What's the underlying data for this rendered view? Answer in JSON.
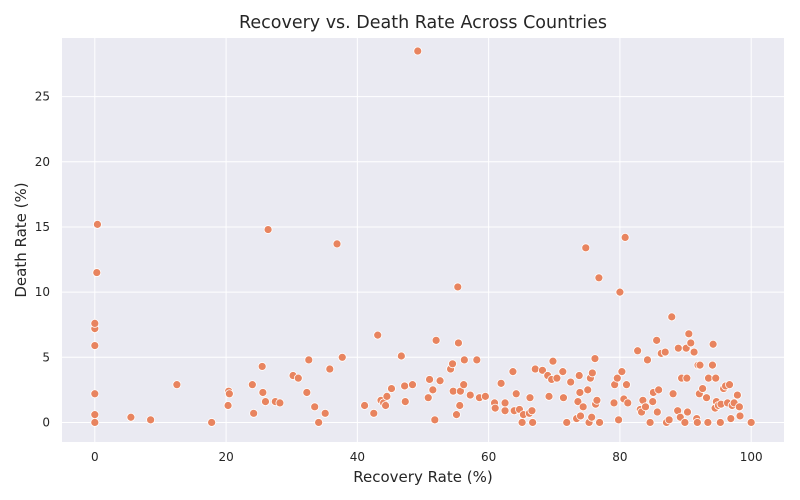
{
  "chart_data": {
    "type": "scatter",
    "title": "Recovery vs. Death Rate Across Countries",
    "xlabel": "Recovery Rate (%)",
    "ylabel": "Death Rate (%)",
    "xlim": [
      -5,
      105
    ],
    "ylim": [
      -1.5,
      29.5
    ],
    "xticks": [
      0,
      20,
      40,
      60,
      80,
      100
    ],
    "yticks": [
      0,
      5,
      10,
      15,
      20,
      25
    ],
    "grid": true,
    "legend": "none",
    "colors": {
      "marker": "#e8845f",
      "marker_edge": "#ffffff",
      "plot_bg": "#eaeaf2",
      "grid": "#ffffff"
    },
    "series": [
      {
        "points": [
          [
            0,
            0
          ],
          [
            0,
            0.6
          ],
          [
            0,
            2.2
          ],
          [
            0,
            5.9
          ],
          [
            0,
            7.2
          ],
          [
            0,
            7.6
          ],
          [
            0.3,
            11.5
          ],
          [
            0.4,
            15.2
          ],
          [
            5.5,
            0.4
          ],
          [
            8.5,
            0.2
          ],
          [
            12.5,
            2.9
          ],
          [
            17.8,
            0
          ],
          [
            20.3,
            1.3
          ],
          [
            20.4,
            2.4
          ],
          [
            20.5,
            2.2
          ],
          [
            24,
            2.9
          ],
          [
            24.2,
            0.7
          ],
          [
            25.5,
            4.3
          ],
          [
            25.6,
            2.3
          ],
          [
            26,
            1.6
          ],
          [
            26.4,
            14.8
          ],
          [
            27.5,
            1.6
          ],
          [
            28.2,
            1.5
          ],
          [
            30.2,
            3.6
          ],
          [
            31,
            3.4
          ],
          [
            32.3,
            2.3
          ],
          [
            32.6,
            4.8
          ],
          [
            33.5,
            1.2
          ],
          [
            34.1,
            0
          ],
          [
            35.1,
            0.7
          ],
          [
            35.8,
            4.1
          ],
          [
            36.9,
            13.7
          ],
          [
            37.7,
            5
          ],
          [
            41.1,
            1.3
          ],
          [
            42.5,
            0.7
          ],
          [
            43.1,
            6.7
          ],
          [
            43.6,
            1.7
          ],
          [
            44,
            1.5
          ],
          [
            44.3,
            1.3
          ],
          [
            44.5,
            2
          ],
          [
            45.2,
            2.6
          ],
          [
            46.7,
            5.1
          ],
          [
            47.2,
            2.8
          ],
          [
            47.3,
            1.6
          ],
          [
            48.4,
            2.9
          ],
          [
            49.2,
            28.5
          ],
          [
            50.8,
            1.9
          ],
          [
            51,
            3.3
          ],
          [
            51.5,
            2.5
          ],
          [
            51.8,
            0.2
          ],
          [
            52,
            6.3
          ],
          [
            52.6,
            3.2
          ],
          [
            54.2,
            4.1
          ],
          [
            54.5,
            4.5
          ],
          [
            54.6,
            2.4
          ],
          [
            55.1,
            0.6
          ],
          [
            55.3,
            10.4
          ],
          [
            55.4,
            6.1
          ],
          [
            55.6,
            1.3
          ],
          [
            55.7,
            2.4
          ],
          [
            56.2,
            2.9
          ],
          [
            56.3,
            4.8
          ],
          [
            57.2,
            2.1
          ],
          [
            58.2,
            4.8
          ],
          [
            58.6,
            1.9
          ],
          [
            59.5,
            2
          ],
          [
            60.9,
            1.5
          ],
          [
            61,
            1.1
          ],
          [
            61.9,
            3
          ],
          [
            62.5,
            0.9
          ],
          [
            62.5,
            1.5
          ],
          [
            63.7,
            3.9
          ],
          [
            63.9,
            0.9
          ],
          [
            64.2,
            2.2
          ],
          [
            64.7,
            1
          ],
          [
            65.1,
            0
          ],
          [
            65.3,
            0.6
          ],
          [
            66.2,
            0.7
          ],
          [
            66.3,
            1.9
          ],
          [
            66.6,
            0.9
          ],
          [
            66.7,
            0
          ],
          [
            67.1,
            4.1
          ],
          [
            68.2,
            4
          ],
          [
            69,
            3.6
          ],
          [
            69.2,
            2
          ],
          [
            69.6,
            3.3
          ],
          [
            69.8,
            4.7
          ],
          [
            70.4,
            3.4
          ],
          [
            71.3,
            3.9
          ],
          [
            71.4,
            1.9
          ],
          [
            71.9,
            0
          ],
          [
            72.5,
            3.1
          ],
          [
            73.4,
            0.3
          ],
          [
            73.6,
            1.6
          ],
          [
            73.8,
            3.6
          ],
          [
            73.9,
            2.3
          ],
          [
            74,
            0.5
          ],
          [
            74.4,
            1.2
          ],
          [
            74.8,
            13.4
          ],
          [
            75.1,
            2.5
          ],
          [
            75.3,
            0
          ],
          [
            75.5,
            3.4
          ],
          [
            75.7,
            0.4
          ],
          [
            75.8,
            3.8
          ],
          [
            76.2,
            4.9
          ],
          [
            76.3,
            1.4
          ],
          [
            76.5,
            1.7
          ],
          [
            76.8,
            11.1
          ],
          [
            76.9,
            0
          ],
          [
            79.1,
            1.5
          ],
          [
            79.2,
            2.9
          ],
          [
            79.6,
            3.4
          ],
          [
            79.8,
            0.2
          ],
          [
            80,
            10
          ],
          [
            80.3,
            3.9
          ],
          [
            80.6,
            1.8
          ],
          [
            80.8,
            14.2
          ],
          [
            81,
            2.9
          ],
          [
            81.2,
            1.5
          ],
          [
            82.7,
            5.5
          ],
          [
            83.1,
            1
          ],
          [
            83.3,
            0.8
          ],
          [
            83.5,
            1.7
          ],
          [
            83.9,
            1.2
          ],
          [
            84.2,
            4.8
          ],
          [
            84.6,
            0
          ],
          [
            85,
            1.6
          ],
          [
            85.1,
            2.3
          ],
          [
            85.6,
            6.3
          ],
          [
            85.7,
            0.8
          ],
          [
            85.9,
            2.5
          ],
          [
            86.3,
            5.3
          ],
          [
            86.9,
            5.4
          ],
          [
            87.1,
            0
          ],
          [
            87.5,
            0.2
          ],
          [
            87.9,
            8.1
          ],
          [
            88.1,
            2.2
          ],
          [
            88.8,
            0.9
          ],
          [
            88.9,
            5.7
          ],
          [
            89.2,
            0.4
          ],
          [
            89.4,
            3.4
          ],
          [
            89.9,
            0
          ],
          [
            90.1,
            5.7
          ],
          [
            90.2,
            3.4
          ],
          [
            90.3,
            0.8
          ],
          [
            90.5,
            6.8
          ],
          [
            90.8,
            6.1
          ],
          [
            91.3,
            5.4
          ],
          [
            91.7,
            0.3
          ],
          [
            91.8,
            0
          ],
          [
            91.9,
            4.4
          ],
          [
            92.1,
            2.2
          ],
          [
            92.2,
            4.4
          ],
          [
            92.6,
            2.6
          ],
          [
            93.2,
            1.9
          ],
          [
            93.4,
            0
          ],
          [
            93.5,
            3.4
          ],
          [
            94.1,
            4.4
          ],
          [
            94.2,
            6
          ],
          [
            94.5,
            1.1
          ],
          [
            94.6,
            3.4
          ],
          [
            94.7,
            1.6
          ],
          [
            95,
            1.3
          ],
          [
            95.3,
            0
          ],
          [
            95.4,
            1.4
          ],
          [
            95.8,
            2.6
          ],
          [
            96.1,
            2.8
          ],
          [
            96.4,
            1.5
          ],
          [
            96.7,
            2.9
          ],
          [
            96.9,
            0.3
          ],
          [
            97.1,
            1.3
          ],
          [
            97.4,
            1.5
          ],
          [
            97.9,
            2.1
          ],
          [
            98.2,
            1.2
          ],
          [
            98.3,
            0.5
          ],
          [
            100,
            0
          ]
        ]
      }
    ]
  }
}
